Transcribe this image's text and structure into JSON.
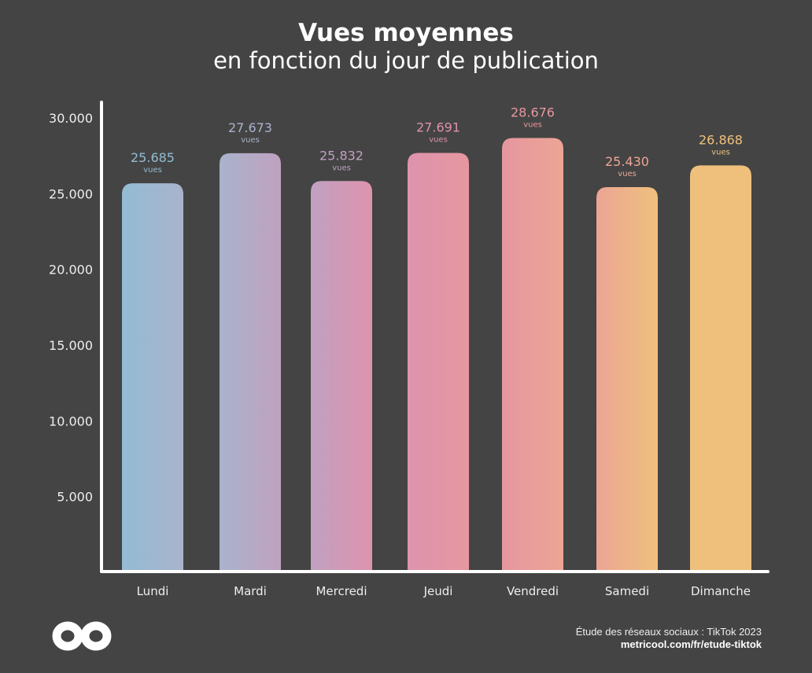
{
  "header": {
    "title": "Vues moyennes",
    "subtitle": "en fonction du jour de publication"
  },
  "chart_data": {
    "type": "bar",
    "title": "Vues moyennes",
    "subtitle": "en fonction du jour de publication",
    "categories": [
      "Lundi",
      "Mardi",
      "Mercredi",
      "Jeudi",
      "Vendredi",
      "Samedi",
      "Dimanche"
    ],
    "values": [
      25685,
      27673,
      25832,
      27691,
      28676,
      25430,
      26868
    ],
    "data_labels": [
      "25.685",
      "27.673",
      "25.832",
      "27.691",
      "28.676",
      "25.430",
      "26.868"
    ],
    "data_label_unit": "vues",
    "colors": [
      "#93bcd3",
      "#a9b3cc",
      "#c0a1c0",
      "#de93ae",
      "#e6979f",
      "#eca595",
      "#efc07c"
    ],
    "yticks": [
      5000,
      10000,
      15000,
      20000,
      25000,
      30000
    ],
    "ytick_labels": [
      "5.000",
      "10.000",
      "15.000",
      "20.000",
      "25.000",
      "30.000"
    ],
    "ylim": [
      0,
      30000
    ],
    "xlabel": "",
    "ylabel": "",
    "grid": false,
    "legend": "none"
  },
  "footer": {
    "source": "Étude des réseaux sociaux : TikTok 2023",
    "url": "metricool.com/fr/etude-tiktok",
    "logo": "metricool infinity logo"
  }
}
